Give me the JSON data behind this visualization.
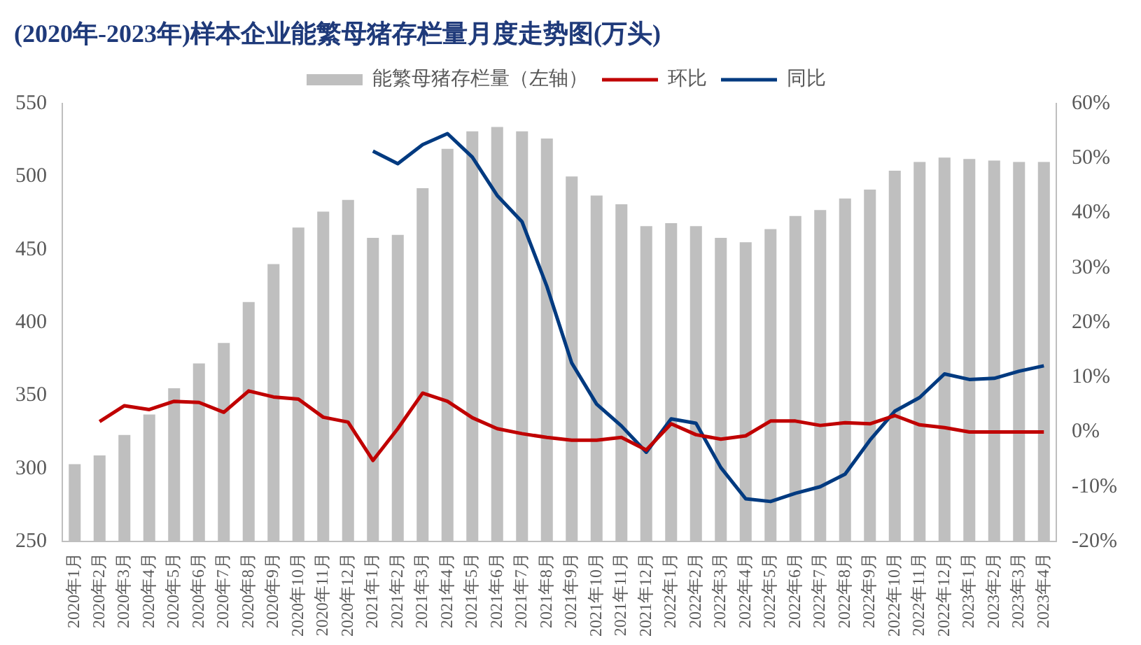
{
  "chart_data": {
    "type": "bar",
    "title": "(2020年-2023年)样本企业能繁母猪存栏量月度走势图(万头)",
    "categories": [
      "2020年1月",
      "2020年2月",
      "2020年3月",
      "2020年4月",
      "2020年5月",
      "2020年6月",
      "2020年7月",
      "2020年8月",
      "2020年9月",
      "2020年10月",
      "2020年11月",
      "2020年12月",
      "2021年1月",
      "2021年2月",
      "2021年3月",
      "2021年4月",
      "2021年5月",
      "2021年6月",
      "2021年7月",
      "2021年8月",
      "2021年9月",
      "2021年10月",
      "2021年11月",
      "2021年12月",
      "2022年1月",
      "2022年2月",
      "2022年3月",
      "2022年4月",
      "2022年5月",
      "2022年6月",
      "2022年7月",
      "2022年8月",
      "2022年9月",
      "2022年10月",
      "2022年11月",
      "2022年12月",
      "2023年1月",
      "2023年2月",
      "2023年3月",
      "2023年4月"
    ],
    "series": [
      {
        "name": "能繁母猪存栏量（左轴）",
        "color": "#bfbfbf",
        "values": [
          303,
          309,
          323,
          337,
          355,
          372,
          386,
          414,
          440,
          465,
          476,
          484,
          458,
          460,
          492,
          519,
          531,
          534,
          531,
          526,
          500,
          487,
          481,
          466,
          468,
          466,
          458,
          455,
          464,
          473,
          477,
          485,
          491,
          504,
          510,
          513,
          512,
          511,
          510,
          510
        ]
      },
      {
        "name": "环比",
        "type": "line",
        "axis": "y2",
        "color": "#c00000",
        "values": [
          null,
          1.9,
          4.8,
          4.1,
          5.6,
          5.4,
          3.6,
          7.5,
          6.4,
          6.0,
          2.7,
          1.8,
          -5.2,
          0.6,
          7.1,
          5.6,
          2.6,
          0.6,
          -0.3,
          -1.0,
          -1.5,
          -1.5,
          -1.0,
          -3.3,
          1.5,
          -0.5,
          -1.3,
          -0.7,
          2.0,
          2.0,
          1.2,
          1.7,
          1.5,
          3.0,
          1.3,
          0.8,
          0,
          0,
          0,
          0
        ]
      },
      {
        "name": "同比",
        "type": "line",
        "axis": "y2",
        "color": "#003a80",
        "values": [
          null,
          null,
          null,
          null,
          null,
          null,
          null,
          null,
          null,
          null,
          null,
          null,
          51.3,
          49.0,
          52.5,
          54.5,
          50.2,
          43.2,
          38.4,
          26.6,
          12.6,
          5.1,
          1.1,
          -3.7,
          2.4,
          1.6,
          -6.5,
          -12.2,
          -12.7,
          -11.2,
          -10.0,
          -7.7,
          -1.5,
          3.8,
          6.3,
          10.6,
          9.6,
          9.8,
          11.1,
          12.1
        ]
      }
    ],
    "ylim": [
      250,
      550
    ],
    "yticks": [
      250,
      300,
      350,
      400,
      450,
      500,
      550
    ],
    "y2lim": [
      -20,
      60
    ],
    "y2ticks": [
      {
        "value": -20,
        "label": "-20%"
      },
      {
        "value": -10,
        "label": "-10%"
      },
      {
        "value": 0,
        "label": "0%"
      },
      {
        "value": 10,
        "label": "10%"
      },
      {
        "value": 20,
        "label": "20%"
      },
      {
        "value": 30,
        "label": "30%"
      },
      {
        "value": 40,
        "label": "40%"
      },
      {
        "value": 50,
        "label": "50%"
      },
      {
        "value": 60,
        "label": "60%"
      }
    ],
    "legend": "top",
    "grid": false,
    "marker": "none",
    "line_style": "solid"
  }
}
